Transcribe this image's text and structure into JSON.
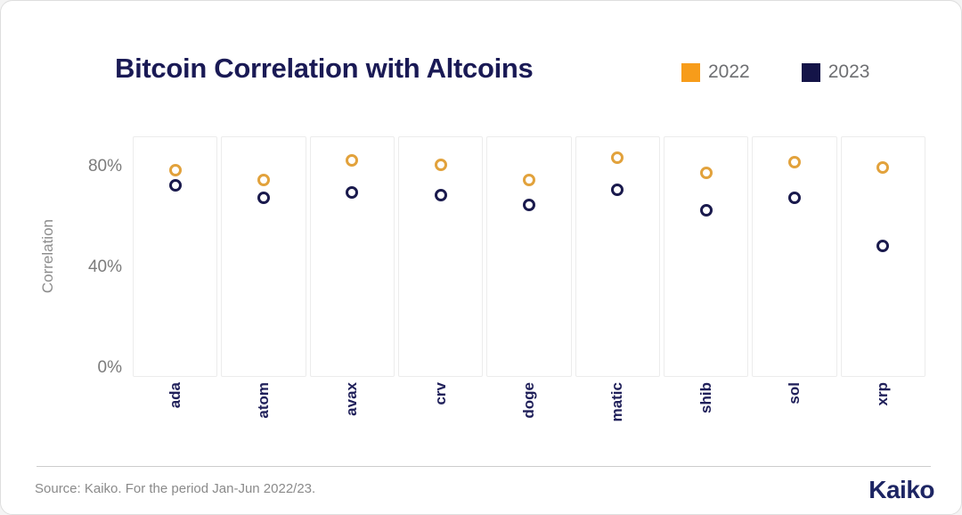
{
  "header": {
    "title": "Bitcoin Correlation with Altcoins",
    "legend": [
      {
        "label": "2022",
        "color": "#F79C1A"
      },
      {
        "label": "2023",
        "color": "#141448"
      }
    ]
  },
  "chart_data": {
    "type": "scatter",
    "title": "Bitcoin Correlation with Altcoins",
    "categories": [
      "ada",
      "atom",
      "avax",
      "crv",
      "doge",
      "matic",
      "shib",
      "sol",
      "xrp"
    ],
    "series": [
      {
        "name": "2022",
        "marker": "open-circle",
        "color": "#E2A23C",
        "values": [
          79,
          75,
          83,
          81,
          75,
          84,
          78,
          82,
          80
        ]
      },
      {
        "name": "2023",
        "marker": "open-circle",
        "color": "#1A1A4D",
        "values": [
          73,
          68,
          70,
          69,
          65,
          71,
          63,
          68,
          49
        ]
      }
    ],
    "ylabel": "Correlation",
    "xlabel": "",
    "yticks": [
      0,
      40,
      80
    ],
    "ytick_suffix": "%",
    "ylim": [
      0,
      92
    ],
    "grid": false,
    "faceted": true,
    "legend_position": "top-right"
  },
  "footer": {
    "source": "Source: Kaiko. For the period Jan-Jun 2022/23.",
    "brand": "Kaiko"
  },
  "icons": {
    "logo": "kaiko-hexagon"
  }
}
